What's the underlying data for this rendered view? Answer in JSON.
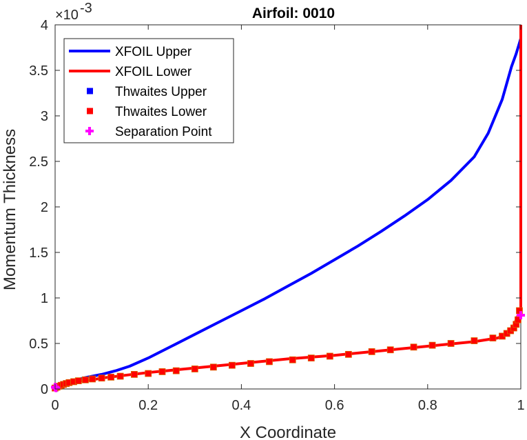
{
  "chart_data": {
    "type": "line",
    "title": "Airfoil: 0010",
    "xlabel": "X Coordinate",
    "ylabel": "Momentum Thickness",
    "xlim": [
      0,
      1
    ],
    "ylim": [
      0,
      0.004
    ],
    "y_multiplier_base": "×10",
    "y_multiplier_exp": "-3",
    "xticks": [
      0,
      0.2,
      0.4,
      0.6,
      0.8,
      1
    ],
    "xtick_labels": [
      "0",
      "0.2",
      "0.4",
      "0.6",
      "0.8",
      "1"
    ],
    "yticks": [
      0,
      0.0005,
      0.001,
      0.0015,
      0.002,
      0.0025,
      0.003,
      0.0035,
      0.004
    ],
    "ytick_labels": [
      "0",
      "0.5",
      "1",
      "1.5",
      "2",
      "2.5",
      "3",
      "3.5",
      "4"
    ],
    "grid": false,
    "legend_position": "top-left",
    "series": [
      {
        "name": "XFOIL Upper",
        "kind": "line",
        "color": "#0000ff",
        "x": [
          0,
          0.005,
          0.01,
          0.02,
          0.04,
          0.06,
          0.08,
          0.1,
          0.13,
          0.16,
          0.2,
          0.25,
          0.3,
          0.35,
          0.4,
          0.45,
          0.5,
          0.55,
          0.6,
          0.65,
          0.7,
          0.75,
          0.8,
          0.85,
          0.9,
          0.93,
          0.96,
          0.98,
          0.99,
          1.0
        ],
        "y": [
          0,
          2e-05,
          4e-05,
          6e-05,
          9e-05,
          0.00012,
          0.00014,
          0.00016,
          0.0002,
          0.00025,
          0.00034,
          0.00047,
          0.0006,
          0.00073,
          0.00086,
          0.00099,
          0.00113,
          0.00127,
          0.00142,
          0.00157,
          0.00173,
          0.0019,
          0.00208,
          0.00229,
          0.00255,
          0.00281,
          0.00318,
          0.00354,
          0.00368,
          0.00385
        ]
      },
      {
        "name": "XFOIL Lower",
        "kind": "line",
        "color": "#ff0000",
        "x": [
          0,
          0.005,
          0.01,
          0.02,
          0.04,
          0.06,
          0.08,
          0.1,
          0.15,
          0.2,
          0.3,
          0.4,
          0.5,
          0.6,
          0.7,
          0.8,
          0.9,
          0.95,
          0.97,
          0.985,
          0.995,
          1.0,
          1.0
        ],
        "y": [
          0,
          2e-05,
          3e-05,
          5e-05,
          7e-05,
          9e-05,
          0.0001,
          0.00012,
          0.00015,
          0.00018,
          0.00023,
          0.00028,
          0.00033,
          0.00037,
          0.00042,
          0.00047,
          0.00052,
          0.00056,
          0.0006,
          0.0007,
          0.00082,
          0.00085,
          0.004
        ]
      },
      {
        "name": "Thwaites Upper",
        "kind": "marker",
        "marker": "square",
        "color": "#0000ff",
        "x": [],
        "y": []
      },
      {
        "name": "Thwaites Lower",
        "kind": "marker",
        "marker": "square",
        "color": "#ff0000",
        "x": [
          0,
          0.004,
          0.008,
          0.013,
          0.018,
          0.024,
          0.03,
          0.04,
          0.05,
          0.065,
          0.08,
          0.1,
          0.12,
          0.14,
          0.17,
          0.2,
          0.23,
          0.26,
          0.3,
          0.34,
          0.38,
          0.42,
          0.46,
          0.51,
          0.55,
          0.59,
          0.63,
          0.68,
          0.72,
          0.77,
          0.81,
          0.85,
          0.9,
          0.94,
          0.96,
          0.97,
          0.978,
          0.985,
          0.99,
          0.994,
          0.997
        ],
        "y": [
          1e-05,
          2e-05,
          3e-05,
          4e-05,
          5e-05,
          6e-05,
          7e-05,
          8e-05,
          9e-05,
          0.0001,
          0.00011,
          0.00012,
          0.00013,
          0.00014,
          0.00016,
          0.00017,
          0.00019,
          0.0002,
          0.00022,
          0.00024,
          0.00026,
          0.00028,
          0.0003,
          0.00032,
          0.00034,
          0.00036,
          0.00038,
          0.00041,
          0.00043,
          0.00046,
          0.00048,
          0.0005,
          0.00053,
          0.00056,
          0.00058,
          0.00061,
          0.00064,
          0.00067,
          0.00071,
          0.00076,
          0.00086
        ]
      },
      {
        "name": "Separation Point",
        "kind": "marker",
        "marker": "plus",
        "color": "#ff00ff",
        "x": [
          0,
          0.002,
          1.0
        ],
        "y": [
          2e-05,
          1e-05,
          0.00081
        ]
      }
    ]
  }
}
